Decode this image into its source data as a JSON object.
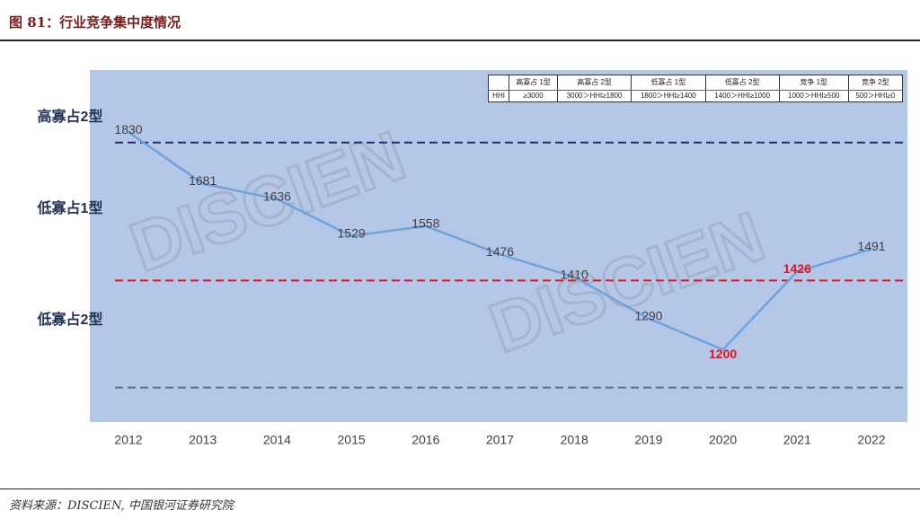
{
  "header": {
    "title": "图 81：行业竞争集中度情况"
  },
  "chart_data": {
    "type": "line",
    "categories": [
      "2012",
      "2013",
      "2014",
      "2015",
      "2016",
      "2017",
      "2018",
      "2019",
      "2020",
      "2021",
      "2022"
    ],
    "values": [
      1830,
      1681,
      1636,
      1529,
      1558,
      1476,
      1410,
      1290,
      1200,
      1426,
      1491
    ],
    "color": "#6fa3dc",
    "label_color": "#404040",
    "value_label_colors": [
      "#404040",
      "#404040",
      "#404040",
      "#404040",
      "#404040",
      "#404040",
      "#404040",
      "#404040",
      "#e8101a",
      "#e8101a",
      "#404040"
    ],
    "ylim": [
      990,
      2010
    ],
    "background": "#b4c7e7",
    "reference_lines": [
      {
        "value": 1800,
        "color": "#1f2f6e"
      },
      {
        "value": 1400,
        "color": "#e0141e"
      },
      {
        "value": 1090,
        "color": "#5a6f9a"
      }
    ],
    "zone_labels": [
      "高寡占2型",
      "低寡占1型",
      "低寡占2型"
    ],
    "watermark": "DISCIEN",
    "hhi_table": {
      "header": [
        "高寡占 1型",
        "高寡占 2型",
        "低寡占 1型",
        "低寡占 2型",
        "竞争 1型",
        "竞争 2型"
      ],
      "row_label": "HHI",
      "values": [
        "≥3000",
        "3000＞HHI≥1800",
        "1800＞HHI≥1400",
        "1400＞HHI≥1000",
        "1000＞HHI≥500",
        "500＞HHI≥0"
      ]
    }
  },
  "footer": {
    "source": "资料来源：DISCIEN, 中国银河证券研究院"
  }
}
